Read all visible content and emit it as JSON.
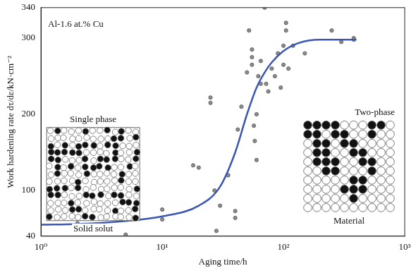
{
  "chart_data": {
    "type": "scatter",
    "x_label": "Aging time/h",
    "y_label": "Work hardening rate dτ/dε/kN·cm⁻²",
    "log": "x",
    "grid": false,
    "xlim": [
      1,
      1000
    ],
    "xticks": [
      {
        "value": 1,
        "label": "10⁰"
      },
      {
        "value": 10,
        "label": "10¹"
      },
      {
        "value": 100,
        "label": "10²"
      },
      {
        "value": 1000,
        "label": "10³"
      }
    ],
    "ylim": [
      40,
      340
    ],
    "yticks": [
      40,
      100,
      200,
      300,
      340
    ],
    "annotations": [
      {
        "text": "Al-1.6 at.% Cu"
      },
      {
        "text": "Single phase"
      },
      {
        "text": "Solid solut"
      },
      {
        "text": "Two-phase"
      },
      {
        "text": "Material"
      }
    ],
    "series": [
      {
        "type": "scatter",
        "color": "#8c8c8c",
        "marker": "circle",
        "x": [
          2,
          2,
          5,
          10,
          10,
          18,
          20,
          25,
          25,
          27,
          28,
          30,
          35,
          40,
          40,
          42,
          45,
          50,
          52,
          55,
          55,
          55,
          57,
          58,
          60,
          60,
          62,
          65,
          65,
          70,
          72,
          75,
          80,
          85,
          90,
          95,
          100,
          100,
          105,
          105,
          110,
          120,
          150,
          250,
          300,
          380,
          380
        ],
        "values": [
          56,
          57,
          42,
          62,
          75,
          133,
          130,
          222,
          215,
          100,
          47,
          80,
          120,
          73,
          64,
          180,
          210,
          255,
          310,
          285,
          275,
          265,
          185,
          165,
          140,
          200,
          250,
          240,
          270,
          340,
          240,
          230,
          260,
          250,
          280,
          235,
          265,
          290,
          320,
          310,
          260,
          290,
          280,
          310,
          295,
          298,
          300
        ]
      },
      {
        "type": "line",
        "color": "#3a55b4",
        "line_style": "solid",
        "x": [
          1,
          2,
          5,
          10,
          20,
          30,
          40,
          50,
          60,
          70,
          80,
          100,
          130,
          200,
          400
        ],
        "values": [
          55,
          56,
          60,
          66,
          80,
          105,
          150,
          200,
          235,
          255,
          268,
          283,
          293,
          298,
          298
        ]
      }
    ]
  }
}
